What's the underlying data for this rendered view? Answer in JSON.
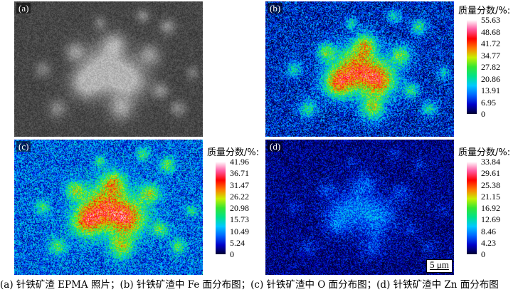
{
  "panels": {
    "a": {
      "label": "(a)"
    },
    "b": {
      "label": "(b)"
    },
    "c": {
      "label": "(c)"
    },
    "d": {
      "label": "(d)"
    }
  },
  "colorbars": {
    "b": {
      "title": "质量分数/%:",
      "ticks": [
        "55.63",
        "48.68",
        "41.72",
        "34.77",
        "27.82",
        "20.86",
        "13.91",
        "6.95",
        "0"
      ]
    },
    "c": {
      "title": "质量分数/%:",
      "ticks": [
        "41.96",
        "36.71",
        "31.47",
        "26.22",
        "20.98",
        "15.73",
        "10.49",
        "5.24",
        "0"
      ]
    },
    "d": {
      "title": "质量分数/%:",
      "ticks": [
        "33.84",
        "29.61",
        "25.38",
        "21.15",
        "16.92",
        "12.69",
        "8.46",
        "4.23",
        "0"
      ]
    }
  },
  "scalebar": {
    "label": "5 μm"
  },
  "caption": "(a)  针铁矿渣 EPMA 照片；(b)  针铁矿渣中 Fe 面分布图；(c)  针铁矿渣中 O 面分布图；(d)  针铁矿渣中 Zn 面分布图",
  "colors": {
    "map_scale": [
      "#000032",
      "#0000c8",
      "#0064ff",
      "#00c8ff",
      "#00e28a",
      "#33e633",
      "#c8f000",
      "#ff7800",
      "#ff0000",
      "#ff5aa0",
      "#ffffff"
    ]
  }
}
